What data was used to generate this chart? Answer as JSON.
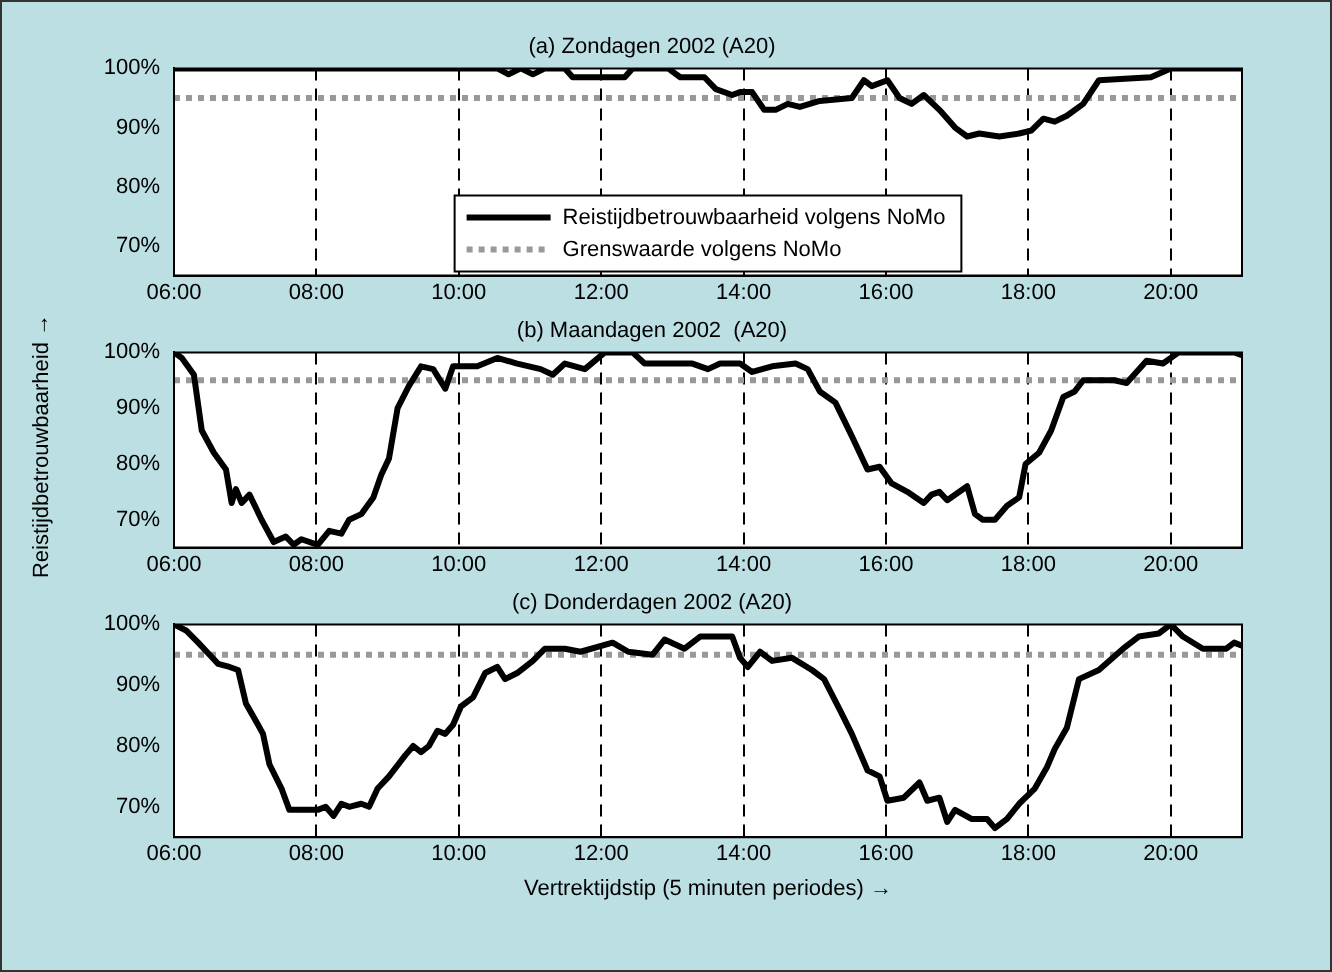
{
  "chart_data": [
    {
      "type": "line",
      "title": "(a) Zondagen 2002 (A20)",
      "xlim": [
        6,
        21
      ],
      "xticks": [
        {
          "value": 6,
          "label": "06:00"
        },
        {
          "value": 8,
          "label": "08:00"
        },
        {
          "value": 10,
          "label": "10:00"
        },
        {
          "value": 12,
          "label": "12:00"
        },
        {
          "value": 14,
          "label": "14:00"
        },
        {
          "value": 16,
          "label": "16:00"
        },
        {
          "value": 18,
          "label": "18:00"
        },
        {
          "value": 20,
          "label": "20:00"
        }
      ],
      "ylim": [
        65,
        100
      ],
      "yticks": [
        {
          "value": 70,
          "label": "70%"
        },
        {
          "value": 80,
          "label": "80%"
        },
        {
          "value": 90,
          "label": "90%"
        },
        {
          "value": 100,
          "label": "100%"
        }
      ],
      "grid": "x",
      "legend": "bottom",
      "series": [
        {
          "name": "Reistijdbetrouwbaarheid volgens NoMo",
          "color": "#000000",
          "line_style": "solid",
          "x": [
            6,
            10.54,
            10.7,
            10.87,
            11.04,
            11.21,
            11.49,
            11.6,
            12.33,
            12.44,
            12.94,
            13.11,
            13.45,
            13.61,
            13.84,
            13.95,
            14.12,
            14.29,
            14.45,
            14.62,
            14.79,
            15.07,
            15.52,
            15.69,
            15.8,
            16.02,
            16.19,
            16.36,
            16.53,
            16.75,
            16.97,
            17.14,
            17.31,
            17.59,
            17.87,
            18.04,
            18.21,
            18.37,
            18.54,
            18.77,
            18.99,
            19.72,
            20,
            21
          ],
          "values": [
            100,
            100,
            99,
            100,
            99,
            100,
            100,
            98.5,
            98.5,
            100,
            100,
            98.5,
            98.5,
            96.5,
            95.5,
            96,
            96,
            93,
            93,
            94,
            93.5,
            94.5,
            95,
            98,
            97,
            98,
            95,
            94,
            95.5,
            93,
            90,
            88.5,
            89,
            88.5,
            89,
            89.5,
            91.5,
            91,
            92,
            94,
            98,
            98.5,
            100,
            100
          ]
        },
        {
          "name": "Grenswaarde volgens NoMo",
          "color": "#999999",
          "line_style": "dotted",
          "x": [
            6,
            21
          ],
          "values": [
            95,
            95
          ]
        }
      ]
    },
    {
      "type": "line",
      "title": "(b) Maandagen 2002  (A20)",
      "ylabel": "Reistijdbetrouwbaarheid →",
      "xlim": [
        6,
        21
      ],
      "xticks": [
        {
          "value": 6,
          "label": "06:00"
        },
        {
          "value": 8,
          "label": "08:00"
        },
        {
          "value": 10,
          "label": "10:00"
        },
        {
          "value": 12,
          "label": "12:00"
        },
        {
          "value": 14,
          "label": "14:00"
        },
        {
          "value": 16,
          "label": "16:00"
        },
        {
          "value": 18,
          "label": "18:00"
        },
        {
          "value": 20,
          "label": "20:00"
        }
      ],
      "ylim": [
        65,
        100
      ],
      "yticks": [
        {
          "value": 70,
          "label": "70%"
        },
        {
          "value": 80,
          "label": "80%"
        },
        {
          "value": 90,
          "label": "90%"
        },
        {
          "value": 100,
          "label": "100%"
        }
      ],
      "grid": "x",
      "series": [
        {
          "color": "#000000",
          "line_style": "solid",
          "x": [
            6,
            6.11,
            6.28,
            6.39,
            6.56,
            6.73,
            6.81,
            6.87,
            6.95,
            7.06,
            7.23,
            7.4,
            7.57,
            7.68,
            7.79,
            8.02,
            8.18,
            8.35,
            8.46,
            8.63,
            8.8,
            8.91,
            9.02,
            9.14,
            9.3,
            9.47,
            9.64,
            9.81,
            9.92,
            10.26,
            10.54,
            10.82,
            11.15,
            11.32,
            11.49,
            11.77,
            12.05,
            12.44,
            12.61,
            12.94,
            13.28,
            13.5,
            13.67,
            13.95,
            14.12,
            14.4,
            14.73,
            14.9,
            15.07,
            15.29,
            15.52,
            15.74,
            15.91,
            16.08,
            16.3,
            16.53,
            16.64,
            16.75,
            16.86,
            17.14,
            17.25,
            17.36,
            17.53,
            17.7,
            17.87,
            17.96,
            18.15,
            18.32,
            18.49,
            18.65,
            18.77,
            19.21,
            19.38,
            19.66,
            19.89,
            20.11,
            20.89,
            21
          ],
          "values": [
            100,
            99,
            96,
            86,
            82,
            79,
            73,
            75.5,
            73,
            74.5,
            70,
            66,
            67,
            65.5,
            66.5,
            65.5,
            68,
            67.5,
            70,
            71,
            74,
            78,
            81,
            90,
            94,
            97.5,
            97,
            93.5,
            97.5,
            97.5,
            99,
            98,
            97,
            96,
            98,
            97,
            100,
            100,
            98,
            98,
            98,
            97,
            98,
            98,
            96.5,
            97.5,
            98,
            97,
            93,
            91,
            85,
            79,
            79.5,
            76.5,
            75,
            73,
            74.5,
            75,
            73.5,
            76,
            71,
            70,
            70,
            72.5,
            74,
            80,
            82,
            86,
            92,
            93,
            95,
            95,
            94.5,
            98.5,
            98,
            100,
            100,
            99.5
          ]
        },
        {
          "color": "#999999",
          "line_style": "dotted",
          "x": [
            6,
            21
          ],
          "values": [
            95,
            95
          ]
        }
      ]
    },
    {
      "type": "line",
      "title": "(c) Donderdagen 2002 (A20)",
      "xlabel": "Vertrektijdstip (5 minuten periodes) →",
      "xlim": [
        6,
        21
      ],
      "xticks": [
        {
          "value": 6,
          "label": "06:00"
        },
        {
          "value": 8,
          "label": "08:00"
        },
        {
          "value": 10,
          "label": "10:00"
        },
        {
          "value": 12,
          "label": "12:00"
        },
        {
          "value": 14,
          "label": "14:00"
        },
        {
          "value": 16,
          "label": "16:00"
        },
        {
          "value": 18,
          "label": "18:00"
        },
        {
          "value": 20,
          "label": "20:00"
        }
      ],
      "ylim": [
        65,
        100
      ],
      "yticks": [
        {
          "value": 70,
          "label": "70%"
        },
        {
          "value": 80,
          "label": "80%"
        },
        {
          "value": 90,
          "label": "90%"
        },
        {
          "value": 100,
          "label": "100%"
        }
      ],
      "grid": "x",
      "series": [
        {
          "color": "#000000",
          "line_style": "solid",
          "x": [
            6,
            6.17,
            6.34,
            6.5,
            6.62,
            6.78,
            6.9,
            7.01,
            7.18,
            7.25,
            7.34,
            7.51,
            7.62,
            7.79,
            8.02,
            8.13,
            8.24,
            8.35,
            8.46,
            8.63,
            8.74,
            8.86,
            9.02,
            9.25,
            9.36,
            9.47,
            9.58,
            9.7,
            9.81,
            9.92,
            10.03,
            10.2,
            10.37,
            10.54,
            10.65,
            10.82,
            11.04,
            11.21,
            11.49,
            11.71,
            12.16,
            12.38,
            12.72,
            12.89,
            13.17,
            13.39,
            13.84,
            13.95,
            14.06,
            14.23,
            14.4,
            14.68,
            14.96,
            15.13,
            15.35,
            15.52,
            15.74,
            15.91,
            16.02,
            16.25,
            16.47,
            16.58,
            16.75,
            16.86,
            16.97,
            17.2,
            17.42,
            17.53,
            17.7,
            17.87,
            18.09,
            18.26,
            18.37,
            18.54,
            18.71,
            18.99,
            19.33,
            19.55,
            19.83,
            20,
            20.17,
            20.45,
            20.78,
            20.89,
            21
          ],
          "values": [
            100,
            99,
            97,
            95,
            93.5,
            93,
            92.5,
            87,
            83.5,
            82,
            77,
            73,
            69.5,
            69.5,
            69.5,
            70,
            68.5,
            70.5,
            70,
            70.5,
            70,
            73,
            75,
            78.5,
            80,
            79,
            80,
            82.5,
            82,
            83.5,
            86.5,
            88,
            92,
            93,
            91,
            92,
            94,
            96,
            96,
            95.5,
            97,
            95.5,
            95,
            97.5,
            96,
            98,
            98,
            94.5,
            93,
            95.5,
            94,
            94.5,
            92.5,
            91,
            86,
            82,
            76,
            75,
            71,
            71.5,
            74,
            71,
            71.5,
            67.5,
            69.5,
            68,
            68,
            66.5,
            68,
            70.5,
            73,
            76.5,
            79.5,
            83,
            91,
            92.5,
            96,
            98,
            98.5,
            100,
            98,
            96,
            96,
            97,
            96.5
          ]
        },
        {
          "color": "#999999",
          "line_style": "dotted",
          "x": [
            6,
            21
          ],
          "values": [
            95,
            95
          ]
        }
      ]
    }
  ]
}
